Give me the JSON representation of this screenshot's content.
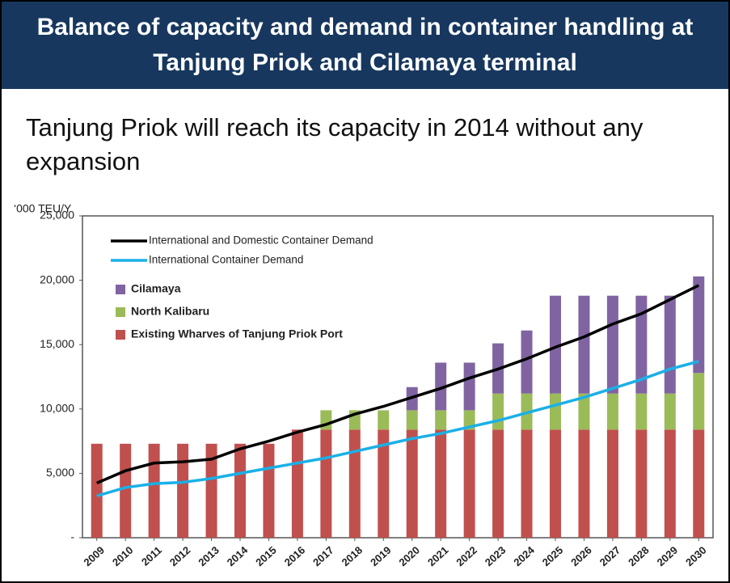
{
  "header": {
    "title": "Balance of capacity and demand in container handling at Tanjung Priok and Cilamaya terminal"
  },
  "subtitle": "Tanjung Priok will reach its capacity in 2014 without any expansion",
  "chart_data": {
    "type": "bar",
    "stacked": true,
    "y_label": "‘000 TEU/Y",
    "categories": [
      "2009",
      "2010",
      "2011",
      "2012",
      "2013",
      "2014",
      "2015",
      "2016",
      "2017",
      "2018",
      "2019",
      "2020",
      "2021",
      "2022",
      "2023",
      "2024",
      "2025",
      "2026",
      "2027",
      "2028",
      "2029",
      "2030"
    ],
    "ylim": [
      0,
      25000
    ],
    "yticks": [
      {
        "value": 0,
        "label": "-"
      },
      {
        "value": 5000,
        "label": "5,000"
      },
      {
        "value": 10000,
        "label": "10,000"
      },
      {
        "value": 15000,
        "label": "15,000"
      },
      {
        "value": 20000,
        "label": "20,000"
      },
      {
        "value": 25000,
        "label": "25,000"
      }
    ],
    "grid": false,
    "legend": "upper left",
    "series": [
      {
        "name": "International and Domestic Container Demand",
        "type": "line",
        "color": "#000000",
        "values": [
          4250,
          5200,
          5800,
          5900,
          6100,
          6900,
          7500,
          8200,
          8800,
          9600,
          10200,
          10900,
          11600,
          12400,
          13100,
          13900,
          14800,
          15600,
          16600,
          17400,
          18500,
          19600
        ]
      },
      {
        "name": "International Container Demand",
        "type": "line",
        "color": "#1ab0e8",
        "values": [
          3250,
          3900,
          4200,
          4300,
          4600,
          5000,
          5400,
          5800,
          6200,
          6700,
          7200,
          7700,
          8100,
          8600,
          9100,
          9700,
          10300,
          10900,
          11600,
          12300,
          13100,
          13700
        ]
      },
      {
        "name": "Cilamaya",
        "type": "bar",
        "color": "#8064a2",
        "values": [
          0,
          0,
          0,
          0,
          0,
          0,
          0,
          0,
          0,
          0,
          0,
          1800,
          3700,
          3700,
          3900,
          4900,
          7600,
          7600,
          7600,
          7600,
          7600,
          7500
        ]
      },
      {
        "name": "North Kalibaru",
        "type": "bar",
        "color": "#9bbb59",
        "values": [
          0,
          0,
          0,
          0,
          0,
          0,
          0,
          0,
          1500,
          1500,
          1500,
          1500,
          1500,
          1500,
          2800,
          2800,
          2800,
          2800,
          2800,
          2800,
          2800,
          4400
        ]
      },
      {
        "name": "Existing Wharves of Tanjung Priok Port",
        "type": "bar",
        "color": "#c0504d",
        "values": [
          7300,
          7300,
          7300,
          7300,
          7300,
          7300,
          7300,
          8400,
          8400,
          8400,
          8400,
          8400,
          8400,
          8400,
          8400,
          8400,
          8400,
          8400,
          8400,
          8400,
          8400,
          8400
        ]
      }
    ]
  }
}
